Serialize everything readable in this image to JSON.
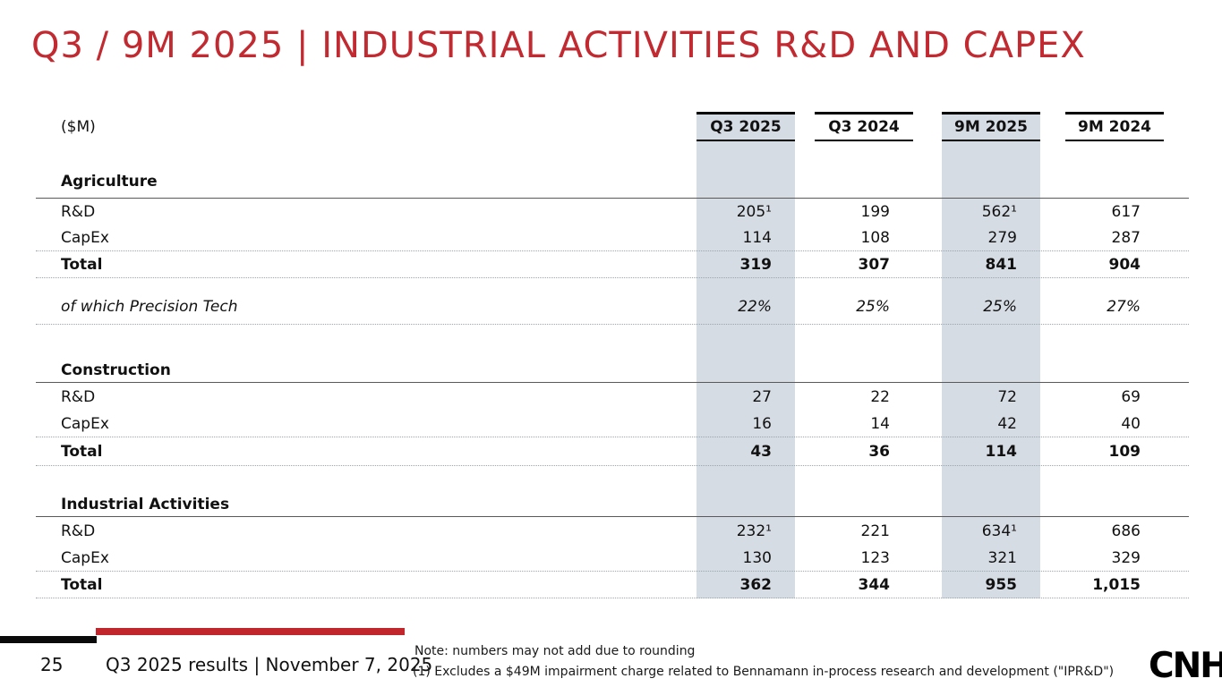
{
  "slide": {
    "title": "Q3 / 9M 2025 | INDUSTRIAL ACTIVITIES R&D AND CAPEX"
  },
  "table": {
    "unit_label": "($M)",
    "columns": [
      {
        "label": "Q3 2025",
        "highlighted": true
      },
      {
        "label": "Q3 2024",
        "highlighted": false
      },
      {
        "label": "9M 2025",
        "highlighted": true
      },
      {
        "label": "9M 2024",
        "highlighted": false
      }
    ],
    "sections": [
      {
        "name": "Agriculture",
        "rows": [
          {
            "label": "R&D",
            "values": [
              "205¹",
              "199",
              "562¹",
              "617"
            ]
          },
          {
            "label": "CapEx",
            "values": [
              "114",
              "108",
              "279",
              "287"
            ]
          },
          {
            "label": "Total",
            "values": [
              "319",
              "307",
              "841",
              "904"
            ]
          }
        ],
        "precision_row": {
          "label": "of which Precision Tech",
          "values": [
            "22%",
            "25%",
            "25%",
            "27%"
          ]
        }
      },
      {
        "name": "Construction",
        "rows": [
          {
            "label": "R&D",
            "values": [
              "27",
              "22",
              "72",
              "69"
            ]
          },
          {
            "label": "CapEx",
            "values": [
              "16",
              "14",
              "42",
              "40"
            ]
          },
          {
            "label": "Total",
            "values": [
              "43",
              "36",
              "114",
              "109"
            ]
          }
        ]
      },
      {
        "name": "Industrial Activities",
        "rows": [
          {
            "label": "R&D",
            "values": [
              "232¹",
              "221",
              "634¹",
              "686"
            ]
          },
          {
            "label": "CapEx",
            "values": [
              "130",
              "123",
              "321",
              "329"
            ]
          },
          {
            "label": "Total",
            "values": [
              "362",
              "344",
              "955",
              "1,015"
            ]
          }
        ]
      }
    ]
  },
  "footer": {
    "page_number": "25",
    "text": "Q3 2025 results | November 7, 2025",
    "note_line1": "Note: numbers may not add due to rounding",
    "note_line2": "(1) Excludes a $49M impairment charge related to Bennamann in-process research and development (\"IPR&D\")",
    "logo": "CNH"
  },
  "colors": {
    "title_red": "#c12a30",
    "accent_bar_red": "#c0262c",
    "accent_bar_black": "#0a0a0a",
    "column_highlight": "#d6dce4"
  }
}
